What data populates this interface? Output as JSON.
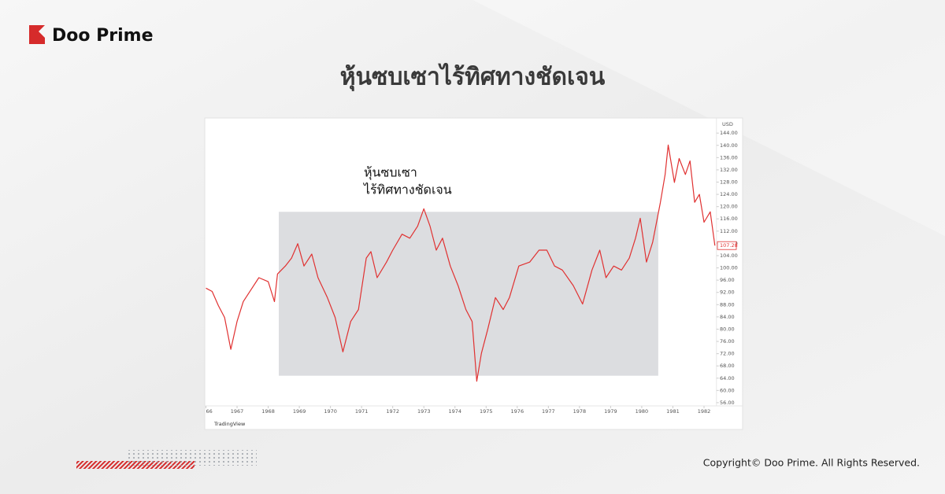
{
  "header": {
    "logo": "Doo Prime",
    "title": "หุ้นซบเซาไร้ทิศทางชัดเจน"
  },
  "chart_data": {
    "type": "line",
    "x": [
      1966.0,
      1966.2,
      1966.4,
      1966.6,
      1966.8,
      1967.0,
      1967.2,
      1967.45,
      1967.7,
      1968.0,
      1968.2,
      1968.3,
      1968.55,
      1968.75,
      1968.95,
      1969.15,
      1969.4,
      1969.6,
      1969.9,
      1970.15,
      1970.4,
      1970.65,
      1970.9,
      1971.15,
      1971.3,
      1971.5,
      1971.8,
      1972.0,
      1972.3,
      1972.55,
      1972.8,
      1973.0,
      1973.2,
      1973.4,
      1973.6,
      1973.85,
      1974.1,
      1974.35,
      1974.55,
      1974.7,
      1974.85,
      1975.05,
      1975.3,
      1975.55,
      1975.75,
      1976.05,
      1976.4,
      1976.7,
      1976.95,
      1977.2,
      1977.45,
      1977.8,
      1978.1,
      1978.4,
      1978.65,
      1978.85,
      1979.1,
      1979.35,
      1979.6,
      1979.8,
      1979.95,
      1980.15,
      1980.35,
      1980.6,
      1980.75,
      1980.85,
      1981.05,
      1981.2,
      1981.4,
      1981.55,
      1981.7,
      1981.85,
      1982.0,
      1982.2,
      1982.35
    ],
    "values": [
      93.4,
      92.3,
      87.7,
      83.8,
      73.4,
      82.5,
      89,
      92.9,
      96.8,
      95.5,
      89,
      98,
      100.6,
      103.2,
      107.9,
      100.6,
      104.5,
      96.8,
      90.3,
      83.8,
      72.6,
      82.5,
      86.4,
      103.2,
      105.3,
      96.8,
      101.9,
      105.8,
      111,
      109.7,
      113.6,
      119.3,
      113.6,
      105.8,
      109.7,
      100.6,
      94.2,
      86.4,
      82.5,
      63,
      72.1,
      79.9,
      90.3,
      86.4,
      90.3,
      100.6,
      101.9,
      105.8,
      105.8,
      100.6,
      99.3,
      94.2,
      88.2,
      99.3,
      105.8,
      96.8,
      100.6,
      99.3,
      103.2,
      109.7,
      116.2,
      101.9,
      108.4,
      121.4,
      130.5,
      140.1,
      127.9,
      135.7,
      130.5,
      134.9,
      121.4,
      124,
      114.9,
      118.3,
      107.28
    ],
    "color": "#e03131",
    "xlim": [
      1966,
      1982.4
    ],
    "xticks": [
      {
        "value": 1966,
        "label": "66"
      },
      1967,
      1968,
      1969,
      1970,
      1971,
      1972,
      1973,
      1974,
      1975,
      1976,
      1977,
      1978,
      1979,
      1980,
      1981,
      1982
    ],
    "ylim": [
      53,
      146
    ],
    "yticks": [
      {
        "value": 56,
        "label": "56.00"
      },
      {
        "value": 60,
        "label": "60.00"
      },
      {
        "value": 64,
        "label": "64.00"
      },
      {
        "value": 68,
        "label": "68.00"
      },
      {
        "value": 72,
        "label": "72.00"
      },
      {
        "value": 76,
        "label": "76.00"
      },
      {
        "value": 80,
        "label": "80.00"
      },
      {
        "value": 84,
        "label": "84.00"
      },
      {
        "value": 88,
        "label": "88.00"
      },
      {
        "value": 92,
        "label": "92.00"
      },
      {
        "value": 96,
        "label": "96.00"
      },
      {
        "value": 100,
        "label": "100.00"
      },
      {
        "value": 104,
        "label": "104.00"
      },
      {
        "value": 108,
        "label": "108.00"
      },
      {
        "value": 112,
        "label": "112.00"
      },
      {
        "value": 116,
        "label": "116.00"
      },
      {
        "value": 120,
        "label": "120.00"
      },
      {
        "value": 124,
        "label": "124.00"
      },
      {
        "value": 128,
        "label": "128.00"
      },
      {
        "value": 132,
        "label": "132.00"
      },
      {
        "value": 136,
        "label": "136.00"
      },
      {
        "value": 140,
        "label": "140.00"
      },
      {
        "value": 144,
        "label": "144.00"
      }
    ],
    "y_unit": "USD",
    "last_price": {
      "value": 107.28,
      "label": "107.28"
    },
    "highlight": {
      "xlim": [
        1968.34,
        1980.53
      ],
      "ylim": [
        64.8,
        118.3
      ]
    },
    "annotation": [
      "หุ้นซบเซา",
      "ไร้ทิศทางชัดเจน"
    ],
    "watermark": "TradingView"
  },
  "footer": {
    "copyright": "Copyright© Doo Prime. All Rights Reserved."
  }
}
